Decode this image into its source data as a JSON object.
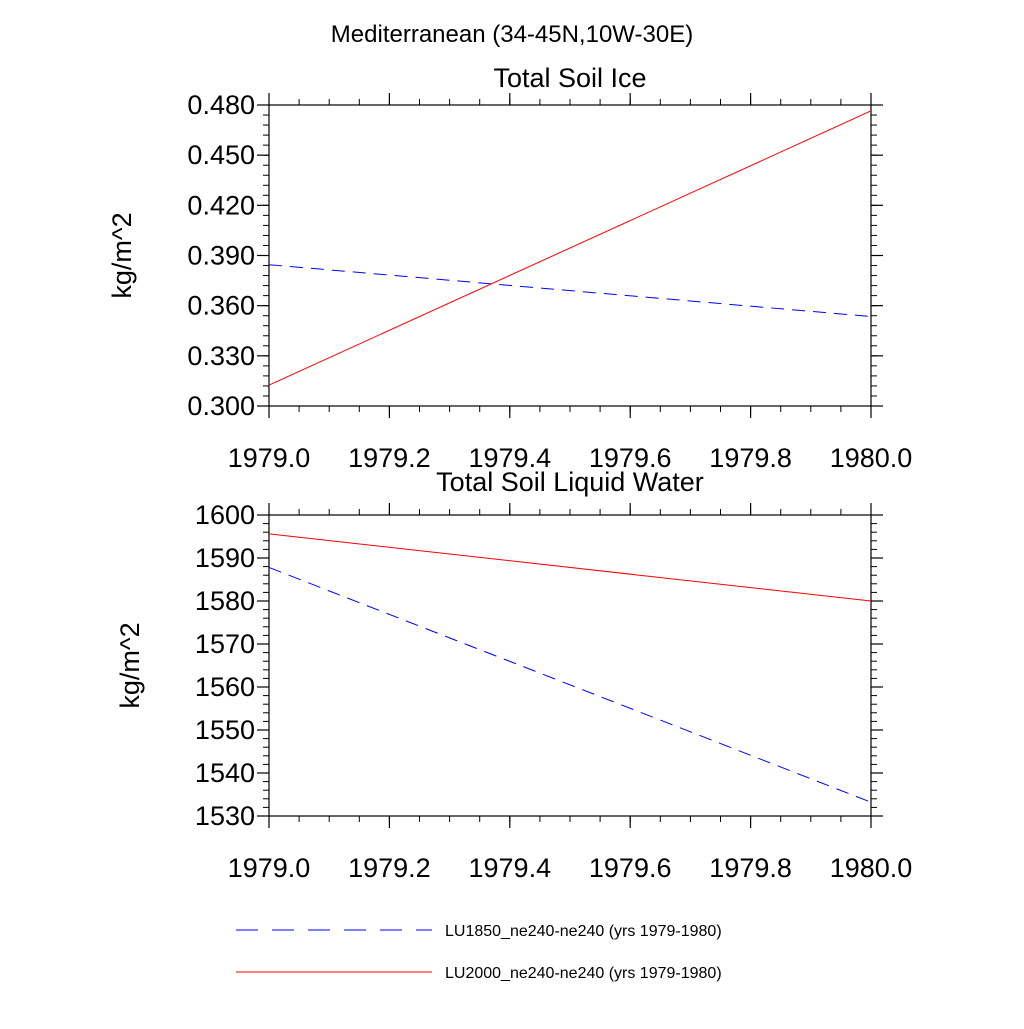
{
  "main_title": "Mediterranean (34-45N,10W-30E)",
  "chart_data": [
    {
      "type": "line",
      "title": "Total Soil Ice",
      "xlabel": "",
      "ylabel": "kg/m^2",
      "xlim": [
        1979.0,
        1980.0
      ],
      "ylim": [
        0.3,
        0.48
      ],
      "x_ticks": [
        1979.0,
        1979.2,
        1979.4,
        1979.6,
        1979.8,
        1980.0
      ],
      "x_tick_labels": [
        "1979.0",
        "1979.2",
        "1979.4",
        "1979.6",
        "1979.8",
        "1980.0"
      ],
      "y_ticks": [
        0.3,
        0.33,
        0.36,
        0.39,
        0.42,
        0.45,
        0.48
      ],
      "y_tick_labels": [
        "0.300",
        "0.330",
        "0.360",
        "0.390",
        "0.420",
        "0.450",
        "0.480"
      ],
      "grid": false,
      "series": [
        {
          "name": "LU1850_ne240-ne240 (yrs 1979-1980)",
          "color": "#0000ff",
          "style": "dashed",
          "x": [
            1979.0,
            1980.0
          ],
          "y": [
            0.3845,
            0.3535
          ]
        },
        {
          "name": "LU2000_ne240-ne240 (yrs 1979-1980)",
          "color": "#ff0000",
          "style": "solid",
          "x": [
            1979.0,
            1980.0
          ],
          "y": [
            0.3125,
            0.4765
          ]
        }
      ]
    },
    {
      "type": "line",
      "title": "Total Soil Liquid Water",
      "xlabel": "",
      "ylabel": "kg/m^2",
      "xlim": [
        1979.0,
        1980.0
      ],
      "ylim": [
        1530,
        1600
      ],
      "x_ticks": [
        1979.0,
        1979.2,
        1979.4,
        1979.6,
        1979.8,
        1980.0
      ],
      "x_tick_labels": [
        "1979.0",
        "1979.2",
        "1979.4",
        "1979.6",
        "1979.8",
        "1980.0"
      ],
      "y_ticks": [
        1530,
        1540,
        1550,
        1560,
        1570,
        1580,
        1590,
        1600
      ],
      "y_tick_labels": [
        "1530",
        "1540",
        "1550",
        "1560",
        "1570",
        "1580",
        "1590",
        "1600"
      ],
      "grid": false,
      "series": [
        {
          "name": "LU1850_ne240-ne240 (yrs 1979-1980)",
          "color": "#0000ff",
          "style": "dashed",
          "x": [
            1979.0,
            1980.0
          ],
          "y": [
            1587.8,
            1533.2
          ]
        },
        {
          "name": "LU2000_ne240-ne240 (yrs 1979-1980)",
          "color": "#ff0000",
          "style": "solid",
          "x": [
            1979.0,
            1980.0
          ],
          "y": [
            1595.6,
            1580.0
          ]
        }
      ]
    }
  ],
  "legend": {
    "placement": "bottom",
    "items": [
      {
        "label": "LU1850_ne240-ne240 (yrs 1979-1980)",
        "color": "#0000ff",
        "style": "dashed"
      },
      {
        "label": "LU2000_ne240-ne240 (yrs 1979-1980)",
        "color": "#ff0000",
        "style": "solid"
      }
    ]
  }
}
